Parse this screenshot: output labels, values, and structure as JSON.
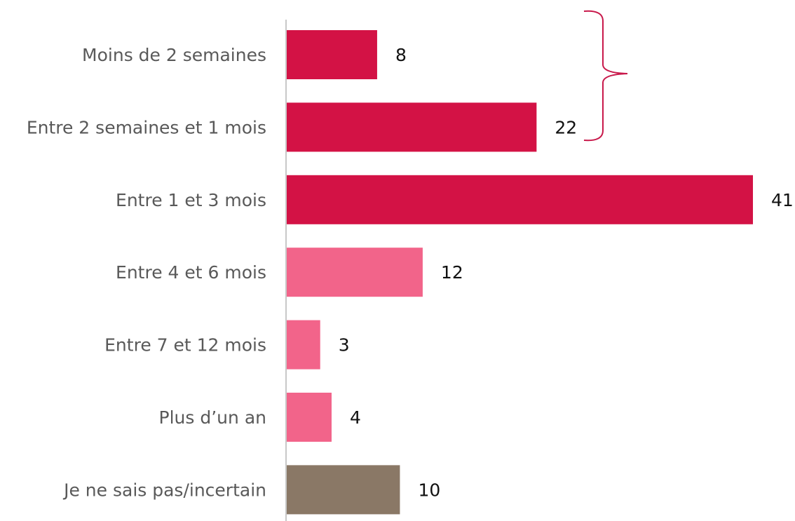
{
  "chart_data": {
    "type": "barh",
    "categories": [
      "Moins de 2 semaines",
      "Entre 2 semaines et 1 mois",
      "Entre 1 et 3 mois",
      "Entre 4 et 6 mois",
      "Entre 7 et 12 mois",
      "Plus d’un an",
      "Je ne sais pas/incertain"
    ],
    "values": [
      8,
      22,
      41,
      12,
      3,
      4,
      10
    ],
    "colors": [
      "#d31245",
      "#d31245",
      "#d31245",
      "#f2648a",
      "#f2648a",
      "#f2648a",
      "#8a7866"
    ]
  }
}
